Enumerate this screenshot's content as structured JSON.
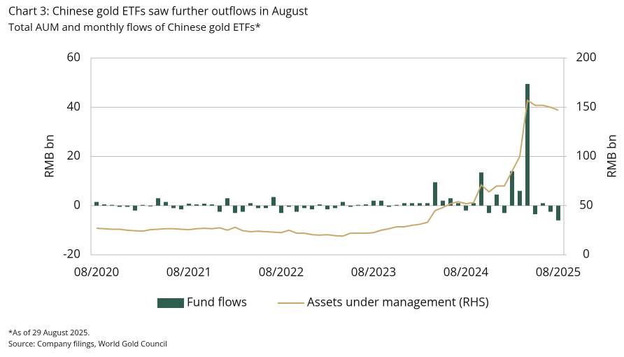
{
  "chart_data": {
    "type": "bar_line",
    "title": "Chart 3: Chinese gold ETFs saw further outflows in August",
    "subtitle": "Total AUM and monthly flows of Chinese gold ETFs*",
    "ylabel": "RMB bn",
    "y2label": "RMB bn",
    "categories": [
      "08/2020",
      null,
      null,
      null,
      null,
      null,
      null,
      null,
      null,
      null,
      null,
      null,
      "08/2021",
      null,
      null,
      null,
      null,
      null,
      null,
      null,
      null,
      null,
      null,
      null,
      "08/2022",
      null,
      null,
      null,
      null,
      null,
      null,
      null,
      null,
      null,
      null,
      null,
      "08/2023",
      null,
      null,
      null,
      null,
      null,
      null,
      null,
      null,
      null,
      null,
      null,
      "08/2024",
      null,
      null,
      null,
      null,
      null,
      null,
      null,
      null,
      null,
      null,
      null,
      "08/2025"
    ],
    "series": [
      {
        "name": "Fund flows",
        "type": "bar",
        "color": "#2e5e4e",
        "values": [
          1.5,
          0.5,
          0.3,
          -0.5,
          -0.5,
          -2,
          0.3,
          -0.3,
          3,
          1.5,
          -1,
          -1.5,
          0.8,
          0.5,
          0.8,
          0.5,
          -2.5,
          3,
          -3,
          -2.5,
          1,
          -1,
          -1,
          3.5,
          -3,
          -0.5,
          -2.5,
          -1,
          -1.5,
          0.5,
          -1.5,
          -1,
          1.5,
          -0.5,
          0.3,
          0.5,
          2,
          2,
          -0.5,
          0.3,
          1,
          1,
          1,
          1,
          9.5,
          2,
          3,
          1,
          -2,
          1,
          13.5,
          -3,
          4.5,
          -3,
          14,
          6,
          49.5,
          -3.5,
          1,
          -2.5,
          -6
        ]
      },
      {
        "name": "Assets under management (RHS)",
        "type": "line",
        "axis": "y2",
        "color": "#c9a96b",
        "values": [
          27,
          26.5,
          26,
          26,
          25,
          24.5,
          24,
          25.5,
          26,
          26.5,
          26.5,
          26,
          25.5,
          26.5,
          27,
          26.5,
          27.5,
          25,
          28,
          24.5,
          23.5,
          24,
          23.5,
          23,
          22.5,
          25,
          22,
          22,
          20.5,
          20,
          20.5,
          19.5,
          19,
          22,
          22,
          22,
          22.5,
          25,
          26.5,
          28.5,
          28.5,
          30,
          31,
          33,
          45,
          48,
          52,
          54,
          52,
          53,
          71,
          64,
          70,
          70,
          85,
          100,
          157,
          152,
          152,
          150,
          147
        ]
      }
    ],
    "ylim": [
      -20,
      60
    ],
    "yticks": [
      -20,
      0,
      20,
      40,
      60
    ],
    "y2lim": [
      0,
      200
    ],
    "y2ticks": [
      0,
      50,
      100,
      150,
      200
    ],
    "grid": true,
    "legend": "bottom",
    "notes": [
      "*As of 29 August 2025.",
      "Source: Company filings, World Gold Council"
    ]
  }
}
